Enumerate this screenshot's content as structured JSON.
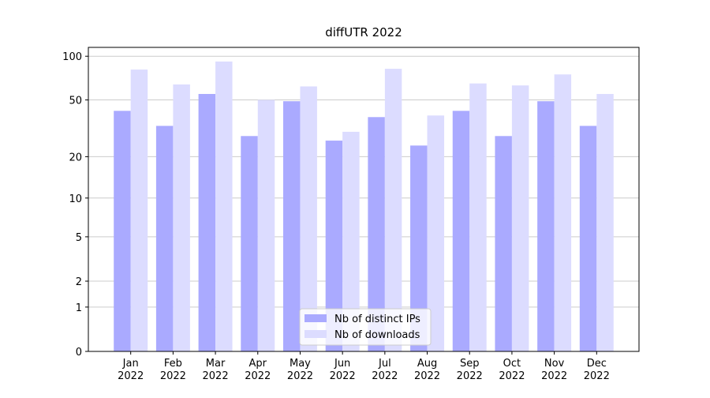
{
  "chart_data": {
    "type": "bar",
    "title": "diffUTR 2022",
    "categories": [
      "Jan\n2022",
      "Feb\n2022",
      "Mar\n2022",
      "Apr\n2022",
      "May\n2022",
      "Jun\n2022",
      "Jul\n2022",
      "Aug\n2022",
      "Sep\n2022",
      "Oct\n2022",
      "Nov\n2022",
      "Dec\n2022"
    ],
    "series": [
      {
        "name": "Nb of distinct IPs",
        "color": "#aaaaff",
        "values": [
          42,
          33,
          55,
          28,
          49,
          26,
          38,
          24,
          42,
          28,
          49,
          33
        ]
      },
      {
        "name": "Nb of downloads",
        "color": "#dcdcff",
        "values": [
          81,
          64,
          92,
          50,
          62,
          30,
          82,
          39,
          65,
          63,
          75,
          55
        ]
      }
    ],
    "yscale": "log1p",
    "ylim": [
      0,
      115
    ],
    "yticks": [
      0,
      1,
      2,
      5,
      10,
      20,
      50,
      100
    ],
    "grid": true,
    "legend": "lower center"
  }
}
